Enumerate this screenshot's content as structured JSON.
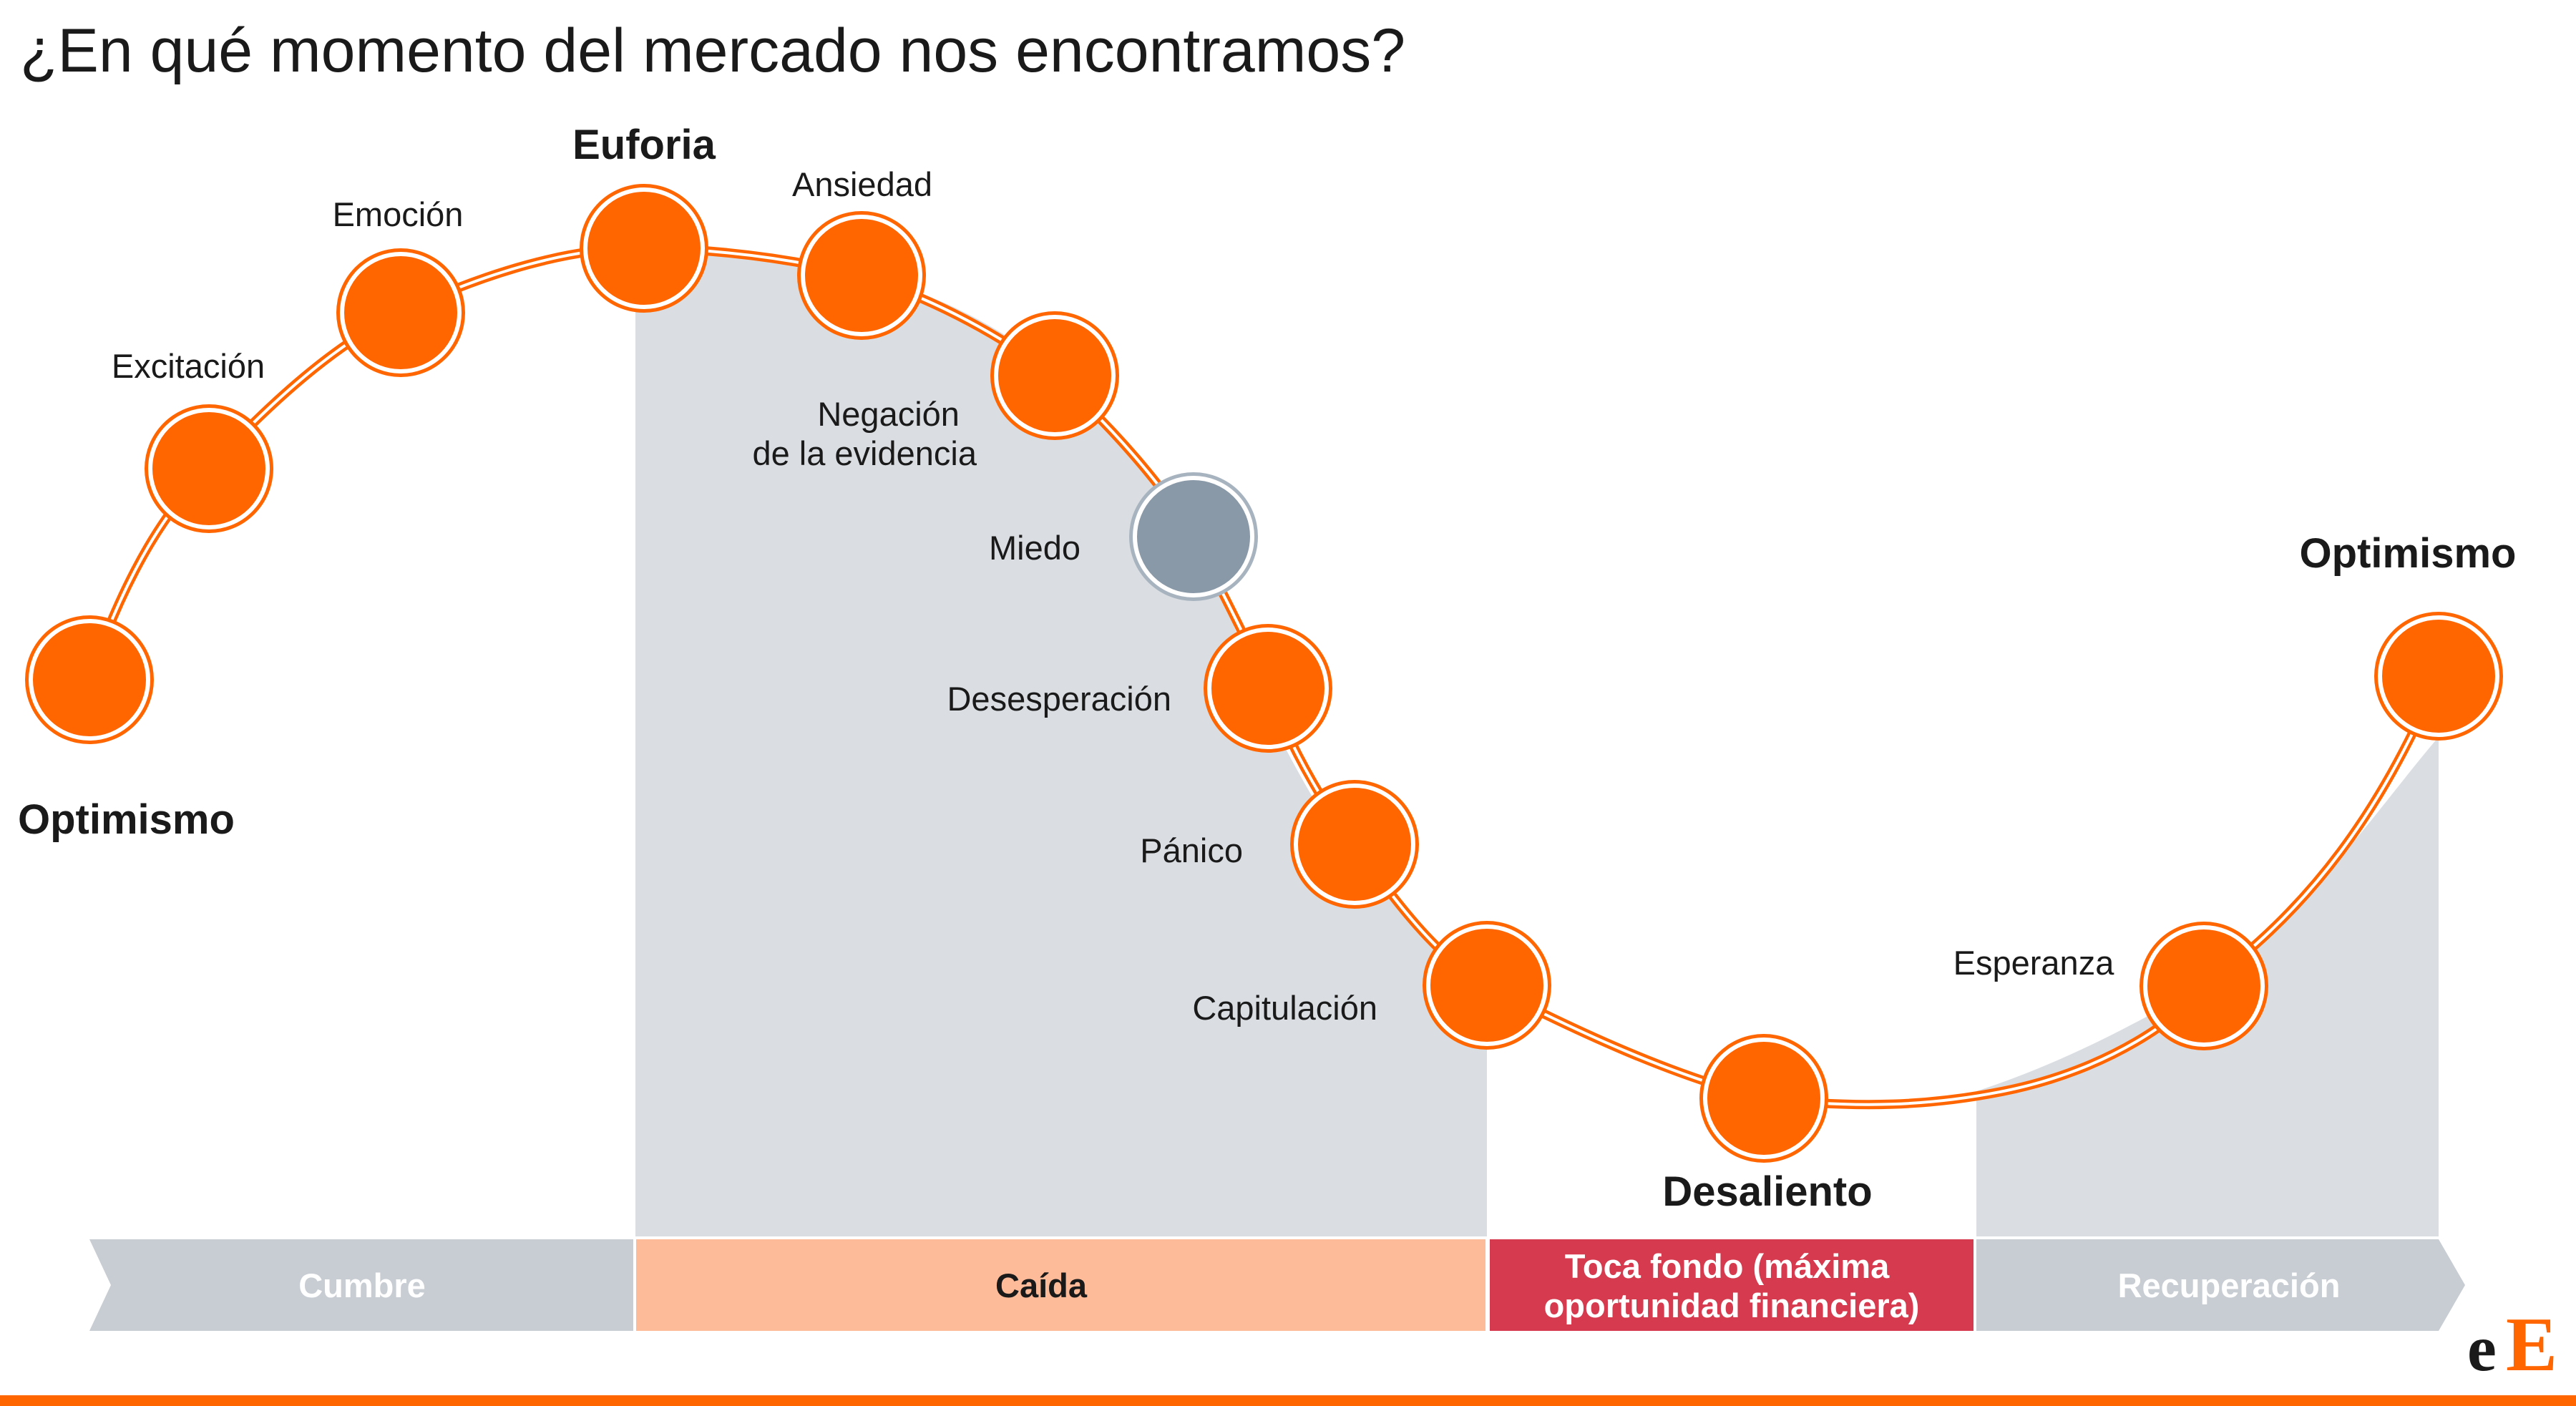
{
  "title": "¿En qué momento del mercado nos encontramos?",
  "colors": {
    "node_fill": "#FF6600",
    "node_current": "#8A99A8",
    "curve": "#FF6600",
    "shade": "#DADEE3",
    "arrow_gray": "#C8CDD3",
    "caida": "#FDBB9A",
    "toca_fondo": "#D63A4E",
    "footer_line": "#FF6600"
  },
  "stages": [
    {
      "label": "Optimismo",
      "bold": true,
      "current": false
    },
    {
      "label": "Excitación",
      "bold": false,
      "current": false
    },
    {
      "label": "Emoción",
      "bold": false,
      "current": false
    },
    {
      "label": "Euforia",
      "bold": true,
      "current": false
    },
    {
      "label": "Ansiedad",
      "bold": false,
      "current": false
    },
    {
      "label": "Negación\nde la evidencia",
      "bold": false,
      "current": false
    },
    {
      "label": "Miedo",
      "bold": false,
      "current": true
    },
    {
      "label": "Desesperación",
      "bold": false,
      "current": false
    },
    {
      "label": "Pánico",
      "bold": false,
      "current": false
    },
    {
      "label": "Capitulación",
      "bold": false,
      "current": false
    },
    {
      "label": "Desaliento",
      "bold": true,
      "current": false
    },
    {
      "label": "Esperanza",
      "bold": false,
      "current": false
    },
    {
      "label": "Optimismo",
      "bold": true,
      "current": false
    }
  ],
  "phases": [
    {
      "label": "Cumbre",
      "style": "gray"
    },
    {
      "label": "Caída",
      "style": "caida"
    },
    {
      "label": "Toca fondo (máxima\noportunidad financiera)",
      "style": "fondo"
    },
    {
      "label": "Recuperación",
      "style": "gray"
    }
  ],
  "logo": {
    "letter1": "e",
    "letter2": "E"
  }
}
